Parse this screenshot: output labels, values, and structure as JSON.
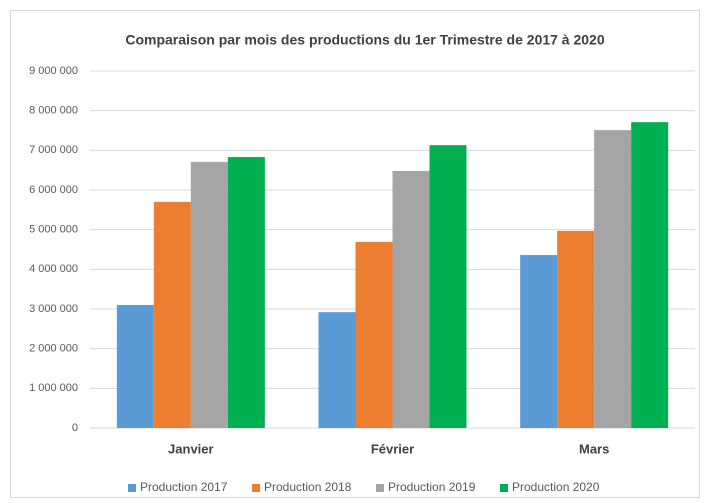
{
  "chart_data": {
    "type": "bar",
    "title": "Comparaison par mois des productions du 1er Trimestre  de 2017 à 2020",
    "categories": [
      "Janvier",
      "Février",
      "Mars"
    ],
    "series": [
      {
        "name": "Production 2017",
        "color": "#5b9bd5",
        "values": [
          3100000,
          2920000,
          4360000
        ]
      },
      {
        "name": "Production 2018",
        "color": "#ed7d31",
        "values": [
          5700000,
          4690000,
          4970000
        ]
      },
      {
        "name": "Production 2019",
        "color": "#a5a5a5",
        "values": [
          6710000,
          6480000,
          7510000
        ]
      },
      {
        "name": "Production 2020",
        "color": "#00b050",
        "values": [
          6830000,
          7130000,
          7710000
        ]
      }
    ],
    "ylim": [
      0,
      9000000
    ],
    "yticks": [
      0,
      {
        "value": 1000000,
        "label": "1 000 000"
      },
      {
        "value": 2000000,
        "label": "2 000 000"
      },
      {
        "value": 3000000,
        "label": "3 000 000"
      },
      {
        "value": 4000000,
        "label": "4 000 000"
      },
      {
        "value": 5000000,
        "label": "5 000 000"
      },
      {
        "value": 6000000,
        "label": "6 000 000"
      },
      {
        "value": 7000000,
        "label": "7 000 000"
      },
      {
        "value": 8000000,
        "label": "8 000 000"
      },
      {
        "value": 9000000,
        "label": "9 000 000"
      }
    ],
    "grid": true,
    "legend": "bottom"
  }
}
